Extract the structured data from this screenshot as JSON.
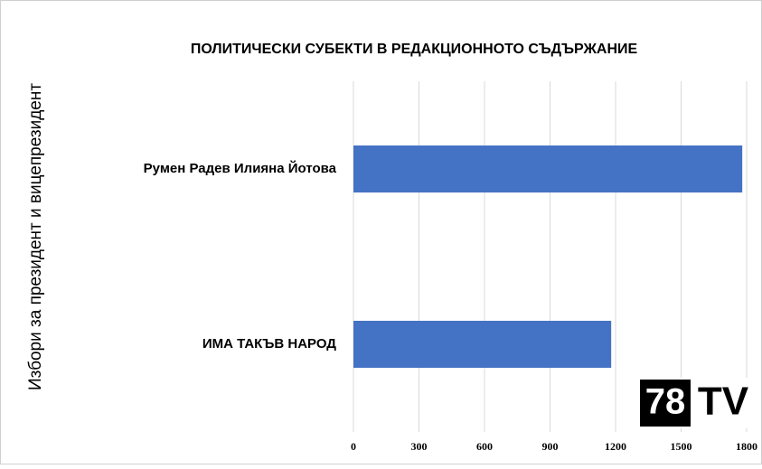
{
  "chart_data": {
    "type": "barh",
    "title": "ПОЛИТИЧЕСКИ СУБЕКТИ В РЕДАКЦИОННОТО СЪДЪРЖАНИЕ",
    "y_label": "Избори за президент и вицепрезидент",
    "categories": [
      "Румен Радев Илияна Йотова",
      "ИМА ТАКЪВ НАРОД"
    ],
    "values": [
      1780,
      1180
    ],
    "color": "#4472c4",
    "xlim": [
      0,
      1800
    ],
    "xticks": [
      0,
      300,
      600,
      900,
      1200,
      1500,
      1800
    ],
    "grid": true,
    "logo": {
      "left": "78",
      "right": "TV"
    }
  }
}
